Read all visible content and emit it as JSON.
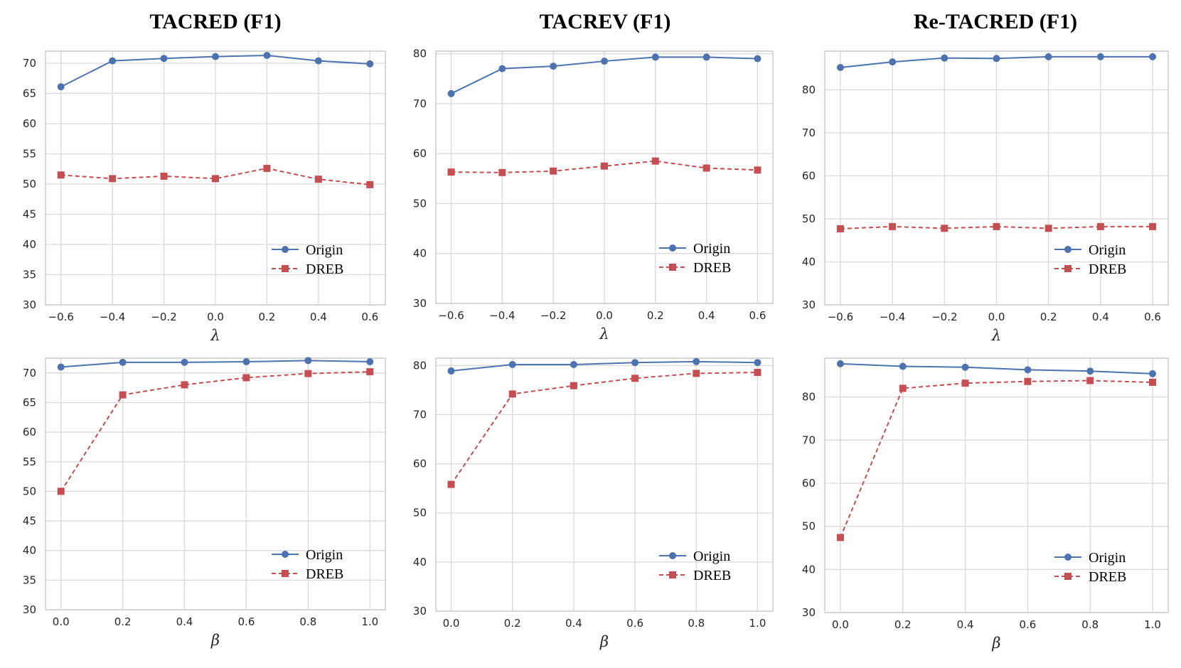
{
  "titles": [
    "TACRED (F1)",
    "TACREV (F1)",
    "Re-TACRED (F1)"
  ],
  "colors": {
    "origin": "#4c72b0",
    "dreb": "#c44e52",
    "grid": "#d9d9d9",
    "frame": "#cccccc"
  },
  "chart_data": [
    {
      "type": "line",
      "id": "tacred-lambda",
      "title": "TACRED (F1)",
      "xlabel": "λ",
      "ylabel": "",
      "x": [
        -0.6,
        -0.4,
        -0.2,
        0.0,
        0.2,
        0.4,
        0.6
      ],
      "xticks": [
        "−0.6",
        "−0.4",
        "−0.2",
        "0.0",
        "0.2",
        "0.4",
        "0.6"
      ],
      "xlim": [
        -0.66,
        0.66
      ],
      "ylim": [
        30,
        72
      ],
      "yticks": [
        30,
        35,
        40,
        45,
        50,
        55,
        60,
        65,
        70
      ],
      "series": [
        {
          "name": "Origin",
          "values": [
            66.1,
            70.4,
            70.8,
            71.1,
            71.3,
            70.4,
            69.9
          ]
        },
        {
          "name": "DREB",
          "values": [
            51.5,
            50.9,
            51.3,
            50.9,
            52.6,
            50.8,
            49.9
          ]
        }
      ],
      "legend": "lower-right"
    },
    {
      "type": "line",
      "id": "tacrev-lambda",
      "title": "TACREV (F1)",
      "xlabel": "λ",
      "ylabel": "",
      "x": [
        -0.6,
        -0.4,
        -0.2,
        0.0,
        0.2,
        0.4,
        0.6
      ],
      "xticks": [
        "−0.6",
        "−0.4",
        "−0.2",
        "0.0",
        "0.2",
        "0.4",
        "0.6"
      ],
      "xlim": [
        -0.66,
        0.66
      ],
      "ylim": [
        30,
        80.5
      ],
      "yticks": [
        30,
        40,
        50,
        60,
        70,
        80
      ],
      "series": [
        {
          "name": "Origin",
          "values": [
            72.0,
            77.0,
            77.5,
            78.5,
            79.3,
            79.3,
            79.0
          ]
        },
        {
          "name": "DREB",
          "values": [
            56.3,
            56.2,
            56.5,
            57.5,
            58.5,
            57.1,
            56.7
          ]
        }
      ],
      "legend": "lower-right"
    },
    {
      "type": "line",
      "id": "retacred-lambda",
      "title": "Re-TACRED (F1)",
      "xlabel": "λ",
      "ylabel": "",
      "x": [
        -0.6,
        -0.4,
        -0.2,
        0.0,
        0.2,
        0.4,
        0.6
      ],
      "xticks": [
        "−0.6",
        "−0.4",
        "−0.2",
        "0.0",
        "0.2",
        "0.4",
        "0.6"
      ],
      "xlim": [
        -0.66,
        0.66
      ],
      "ylim": [
        30,
        89
      ],
      "yticks": [
        30,
        40,
        50,
        60,
        70,
        80
      ],
      "series": [
        {
          "name": "Origin",
          "values": [
            85.2,
            86.5,
            87.4,
            87.3,
            87.7,
            87.7,
            87.7
          ]
        },
        {
          "name": "DREB",
          "values": [
            47.7,
            48.2,
            47.8,
            48.2,
            47.8,
            48.2,
            48.2
          ]
        }
      ],
      "legend": "lower-right"
    },
    {
      "type": "line",
      "id": "tacred-beta",
      "title": "",
      "xlabel": "β",
      "ylabel": "",
      "x": [
        0.0,
        0.2,
        0.4,
        0.6,
        0.8,
        1.0
      ],
      "xticks": [
        "0.0",
        "0.2",
        "0.4",
        "0.6",
        "0.8",
        "1.0"
      ],
      "xlim": [
        -0.05,
        1.05
      ],
      "ylim": [
        30,
        72.5
      ],
      "yticks": [
        30,
        35,
        40,
        45,
        50,
        55,
        60,
        65,
        70
      ],
      "series": [
        {
          "name": "Origin",
          "values": [
            71.0,
            71.8,
            71.8,
            71.9,
            72.1,
            71.9
          ]
        },
        {
          "name": "DREB",
          "values": [
            50.0,
            66.3,
            68.0,
            69.2,
            69.9,
            70.2
          ]
        }
      ],
      "legend": "lower-right"
    },
    {
      "type": "line",
      "id": "tacrev-beta",
      "title": "",
      "xlabel": "β",
      "ylabel": "",
      "x": [
        0.0,
        0.2,
        0.4,
        0.6,
        0.8,
        1.0
      ],
      "xticks": [
        "0.0",
        "0.2",
        "0.4",
        "0.6",
        "0.8",
        "1.0"
      ],
      "xlim": [
        -0.05,
        1.05
      ],
      "ylim": [
        30,
        81.5
      ],
      "yticks": [
        30,
        40,
        50,
        60,
        70,
        80
      ],
      "series": [
        {
          "name": "Origin",
          "values": [
            78.9,
            80.2,
            80.2,
            80.6,
            80.8,
            80.6
          ]
        },
        {
          "name": "DREB",
          "values": [
            55.8,
            74.2,
            75.9,
            77.4,
            78.4,
            78.6
          ]
        }
      ],
      "legend": "lower-right"
    },
    {
      "type": "line",
      "id": "retacred-beta",
      "title": "",
      "xlabel": "β",
      "ylabel": "",
      "x": [
        0.0,
        0.2,
        0.4,
        0.6,
        0.8,
        1.0
      ],
      "xticks": [
        "0.0",
        "0.2",
        "0.4",
        "0.6",
        "0.8",
        "1.0"
      ],
      "xlim": [
        -0.05,
        1.05
      ],
      "ylim": [
        30,
        89
      ],
      "yticks": [
        30,
        40,
        50,
        60,
        70,
        80
      ],
      "series": [
        {
          "name": "Origin",
          "values": [
            87.7,
            87.1,
            86.9,
            86.3,
            86.0,
            85.4
          ]
        },
        {
          "name": "DREB",
          "values": [
            47.4,
            82.0,
            83.2,
            83.6,
            83.8,
            83.4
          ]
        }
      ],
      "legend": "lower-right"
    }
  ]
}
